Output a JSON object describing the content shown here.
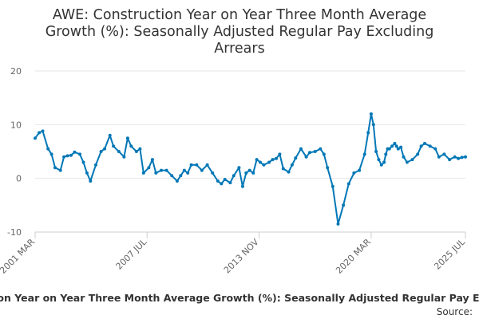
{
  "chart_data": {
    "type": "line",
    "title_lines": [
      "AWE: Construction Year on Year Three Month Average",
      "Growth (%): Seasonally Adjusted Regular Pay Excluding",
      "Arrears"
    ],
    "xlabel": "",
    "ylabel": "",
    "xlim": [
      2001.17,
      2025.5
    ],
    "ylim": [
      -10,
      20
    ],
    "y_ticks": [
      -10,
      0,
      10,
      20
    ],
    "x_ticks": [
      {
        "value": 2001.17,
        "label": "2001 MAR"
      },
      {
        "value": 2007.5,
        "label": "2007 JUL"
      },
      {
        "value": 2013.83,
        "label": "2013 NOV"
      },
      {
        "value": 2020.17,
        "label": "2020 MAR"
      },
      {
        "value": 2025.5,
        "label": "2025 JUL"
      }
    ],
    "grid": true,
    "legend_text": "AWE: Construction Year on Year Three Month Average Growth (%): Seasonally Adjusted Regular Pay Excluding Arrears",
    "source_label": "Source:",
    "series": [
      {
        "color": "#0077b6",
        "x": [
          2001.17,
          2001.4,
          2001.6,
          2001.9,
          2002.1,
          2002.3,
          2002.6,
          2002.8,
          2003.0,
          2003.2,
          2003.4,
          2003.7,
          2003.9,
          2004.1,
          2004.3,
          2004.6,
          2004.9,
          2005.1,
          2005.4,
          2005.6,
          2005.9,
          2006.2,
          2006.4,
          2006.6,
          2006.9,
          2007.1,
          2007.3,
          2007.6,
          2007.8,
          2008.0,
          2008.3,
          2008.6,
          2008.9,
          2009.2,
          2009.4,
          2009.6,
          2009.8,
          2010.0,
          2010.3,
          2010.6,
          2010.9,
          2011.2,
          2011.5,
          2011.7,
          2011.9,
          2012.2,
          2012.4,
          2012.7,
          2012.9,
          2013.1,
          2013.3,
          2013.5,
          2013.7,
          2013.9,
          2014.1,
          2014.4,
          2014.6,
          2014.8,
          2015.0,
          2015.2,
          2015.5,
          2015.7,
          2015.9,
          2016.2,
          2016.5,
          2016.7,
          2017.0,
          2017.3,
          2017.5,
          2017.7,
          2018.0,
          2018.3,
          2018.6,
          2018.9,
          2019.2,
          2019.5,
          2019.8,
          2020.0,
          2020.17,
          2020.3,
          2020.45,
          2020.6,
          2020.75,
          2020.9,
          2021.0,
          2021.1,
          2021.2,
          2021.35,
          2021.5,
          2021.6,
          2021.7,
          2021.85,
          2022.0,
          2022.2,
          2022.5,
          2022.8,
          2023.0,
          2023.2,
          2023.5,
          2023.8,
          2024.0,
          2024.3,
          2024.6,
          2024.9,
          2025.1,
          2025.3,
          2025.5
        ],
        "y": [
          7.5,
          8.5,
          8.8,
          5.5,
          4.5,
          2.0,
          1.5,
          4.0,
          4.2,
          4.3,
          4.9,
          4.5,
          3.0,
          1.0,
          -0.5,
          2.5,
          5.0,
          5.5,
          8.0,
          6.0,
          5.0,
          4.0,
          7.5,
          6.0,
          5.0,
          5.5,
          1.0,
          2.0,
          3.5,
          1.0,
          1.5,
          1.5,
          0.5,
          -0.5,
          0.5,
          1.5,
          1.0,
          2.5,
          2.5,
          1.5,
          2.5,
          1.0,
          -0.5,
          -1.0,
          -0.2,
          -0.8,
          0.5,
          2.0,
          -1.5,
          1.0,
          1.5,
          1.0,
          3.5,
          3.0,
          2.5,
          3.0,
          3.5,
          3.7,
          4.5,
          1.8,
          1.2,
          2.5,
          3.8,
          5.5,
          4.0,
          4.8,
          5.0,
          5.5,
          4.5,
          2.0,
          -1.5,
          -8.5,
          -5.0,
          -1.0,
          1.0,
          1.5,
          4.5,
          8.5,
          12.0,
          10.0,
          5.0,
          3.5,
          2.5,
          3.0,
          4.5,
          5.5,
          5.5,
          6.0,
          6.5,
          6.0,
          5.5,
          5.8,
          4.0,
          3.0,
          3.5,
          4.5,
          6.0,
          6.5,
          6.0,
          5.5,
          4.0,
          4.5,
          3.5,
          4.0,
          3.7,
          3.9,
          4.0
        ]
      }
    ]
  }
}
